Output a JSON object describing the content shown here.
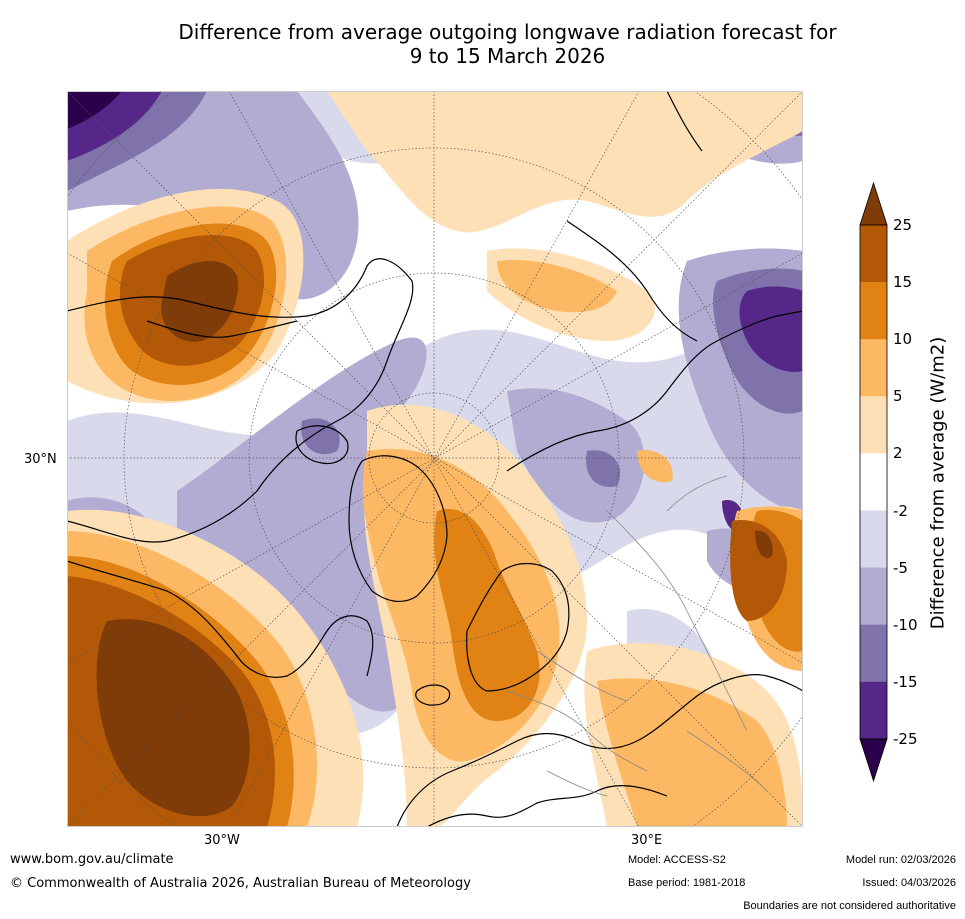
{
  "title": {
    "line1": "Difference from average outgoing longwave radiation forecast for",
    "line2": "9 to 15 March 2026"
  },
  "map": {
    "projection": "north-polar-stereographic",
    "lat_labels": [
      "30°N"
    ],
    "lon_labels": [
      "30°W",
      "30°E"
    ]
  },
  "colorbar": {
    "label": "Difference from average (W/m2)",
    "ticks": [
      "25",
      "15",
      "10",
      "5",
      "2",
      "-2",
      "-5",
      "-10",
      "-15",
      "-25"
    ],
    "bins": [
      {
        "range": ">25",
        "color": "#7f3b08"
      },
      {
        "range": "15 to 25",
        "color": "#b35806"
      },
      {
        "range": "10 to 15",
        "color": "#e08214"
      },
      {
        "range": "5 to 10",
        "color": "#fdb863"
      },
      {
        "range": "2 to 5",
        "color": "#fee0b6"
      },
      {
        "range": "-2 to 2",
        "color": "#ffffff"
      },
      {
        "range": "-5 to -2",
        "color": "#d8daeb"
      },
      {
        "range": "-10 to -5",
        "color": "#b2abd2"
      },
      {
        "range": "-15 to -10",
        "color": "#8073ac"
      },
      {
        "range": "-25 to -15",
        "color": "#542788"
      },
      {
        "range": "<-25",
        "color": "#2d004b"
      }
    ]
  },
  "footer": {
    "website": "www.bom.gov.au/climate",
    "copyright": "© Commonwealth of Australia 2026, Australian Bureau of Meteorology",
    "model": "Model: ACCESS-S2",
    "base_period": "Base period: 1981-2018",
    "model_run": "Model run: 02/03/2026",
    "issued": "Issued: 04/03/2026",
    "disclaimer": "Boundaries are not considered authoritative"
  }
}
